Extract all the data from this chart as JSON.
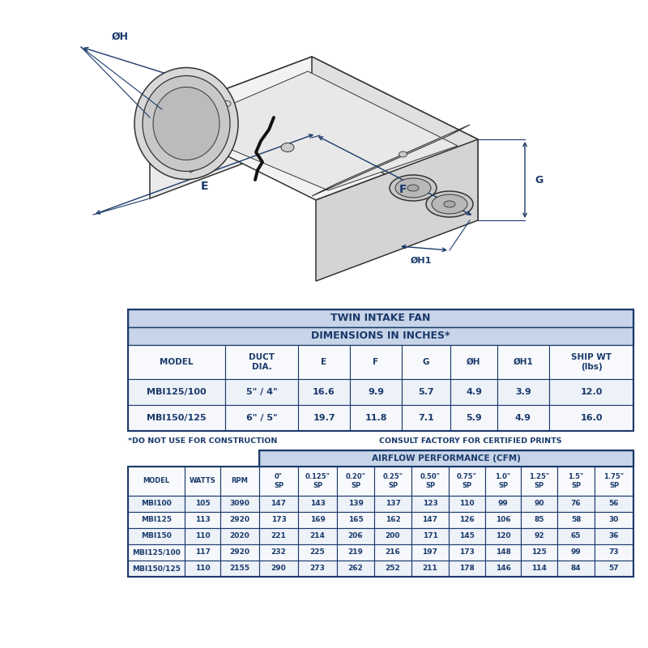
{
  "title_color": "#1a3a6b",
  "bg_color": "#ffffff",
  "table_header_bg": "#c8d4e8",
  "table_border_color": "#1a3a6b",
  "dim_table_title1": "TWIN INTAKE FAN",
  "dim_table_title2": "DIMENSIONS IN INCHES*",
  "dim_headers": [
    "MODEL",
    "DUCT\nDIA.",
    "E",
    "F",
    "G",
    "ØH",
    "ØH1",
    "SHIP WT\n(lbs)"
  ],
  "dim_rows": [
    [
      "MBI125/100",
      "5\" / 4\"",
      "16.6",
      "9.9",
      "5.7",
      "4.9",
      "3.9",
      "12.0"
    ],
    [
      "MBI150/125",
      "6\" / 5\"",
      "19.7",
      "11.8",
      "7.1",
      "5.9",
      "4.9",
      "16.0"
    ]
  ],
  "footnote_left": "*DO NOT USE FOR CONSTRUCTION",
  "footnote_right": "CONSULT FACTORY FOR CERTIFIED PRINTS",
  "perf_table_title": "AIRFLOW PERFORMANCE (CFM)",
  "perf_headers": [
    "MODEL",
    "WATTS",
    "RPM",
    "0\"\nSP",
    "0.125\"\nSP",
    "0.20\"\nSP",
    "0.25\"\nSP",
    "0.50\"\nSP",
    "0.75\"\nSP",
    "1.0\"\nSP",
    "1.25\"\nSP",
    "1.5\"\nSP",
    "1.75\"\nSP"
  ],
  "perf_rows": [
    [
      "MBI100",
      "105",
      "3090",
      "147",
      "143",
      "139",
      "137",
      "123",
      "110",
      "99",
      "90",
      "76",
      "56"
    ],
    [
      "MBI125",
      "113",
      "2920",
      "173",
      "169",
      "165",
      "162",
      "147",
      "126",
      "106",
      "85",
      "58",
      "30"
    ],
    [
      "MBI150",
      "110",
      "2020",
      "221",
      "214",
      "206",
      "200",
      "171",
      "145",
      "120",
      "92",
      "65",
      "36"
    ],
    [
      "MBI125/100",
      "117",
      "2920",
      "232",
      "225",
      "219",
      "216",
      "197",
      "173",
      "148",
      "125",
      "99",
      "73"
    ],
    [
      "MBI150/125",
      "110",
      "2155",
      "290",
      "273",
      "262",
      "252",
      "211",
      "178",
      "146",
      "114",
      "84",
      "57"
    ]
  ],
  "arrow_color": "#1a3a6b",
  "diagram_color": "#333333"
}
